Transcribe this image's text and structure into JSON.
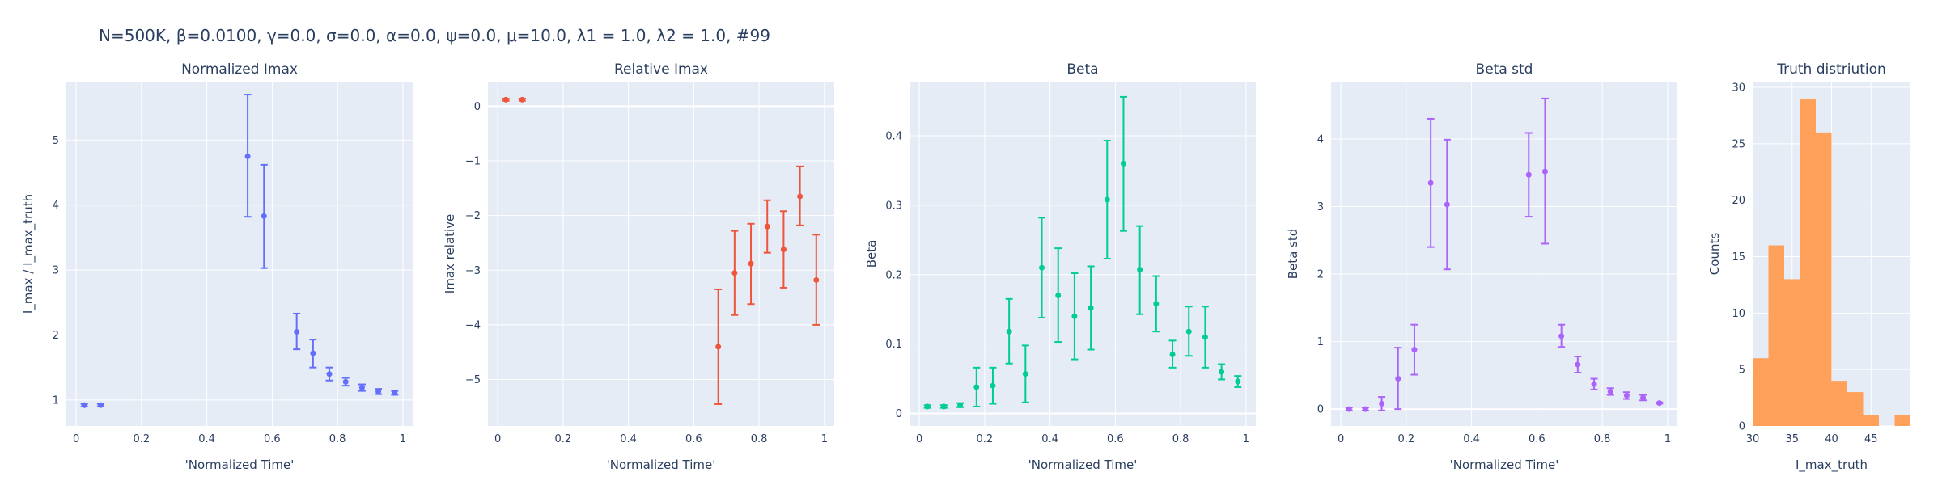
{
  "figure": {
    "suptitle": "N=500K, β=0.0100, γ=0.0, σ=0.0,  α=0.0, ψ=0.0, μ=10.0, λ1 = 1.0, λ2 = 1.0, #99"
  },
  "chart_data": [
    {
      "type": "scatter",
      "title": "Normalized Imax",
      "xlabel": "'Normalized Time'",
      "ylabel": "I_max / I_max_truth",
      "color": "#636efa",
      "xlim": [
        -0.03,
        1.03
      ],
      "ylim": [
        0.6,
        5.9
      ],
      "xticks": [
        0,
        0.2,
        0.4,
        0.6,
        0.8,
        1
      ],
      "xtick_labels": [
        "0",
        "0.2",
        "0.4",
        "0.6",
        "0.8",
        "1"
      ],
      "yticks": [
        1,
        2,
        3,
        4,
        5
      ],
      "ytick_labels": [
        "1",
        "2",
        "3",
        "4",
        "5"
      ],
      "points": [
        {
          "x": 0.025,
          "y": 0.92,
          "lo": 0.9,
          "hi": 0.94
        },
        {
          "x": 0.075,
          "y": 0.92,
          "lo": 0.9,
          "hi": 0.94
        },
        {
          "x": 0.525,
          "y": 4.75,
          "lo": 3.82,
          "hi": 5.7
        },
        {
          "x": 0.575,
          "y": 3.83,
          "lo": 3.03,
          "hi": 4.62
        },
        {
          "x": 0.675,
          "y": 2.05,
          "lo": 1.78,
          "hi": 2.33
        },
        {
          "x": 0.725,
          "y": 1.72,
          "lo": 1.5,
          "hi": 1.93
        },
        {
          "x": 0.775,
          "y": 1.4,
          "lo": 1.3,
          "hi": 1.5
        },
        {
          "x": 0.825,
          "y": 1.28,
          "lo": 1.22,
          "hi": 1.34
        },
        {
          "x": 0.875,
          "y": 1.19,
          "lo": 1.14,
          "hi": 1.24
        },
        {
          "x": 0.925,
          "y": 1.13,
          "lo": 1.09,
          "hi": 1.17
        },
        {
          "x": 0.975,
          "y": 1.11,
          "lo": 1.08,
          "hi": 1.14
        }
      ]
    },
    {
      "type": "scatter",
      "title": "Relative Imax",
      "xlabel": "'Normalized Time'",
      "ylabel": "Imax relative",
      "color": "#ef553b",
      "xlim": [
        -0.03,
        1.03
      ],
      "ylim": [
        -5.85,
        0.45
      ],
      "xticks": [
        0,
        0.2,
        0.4,
        0.6,
        0.8,
        1
      ],
      "xtick_labels": [
        "0",
        "0.2",
        "0.4",
        "0.6",
        "0.8",
        "1"
      ],
      "yticks": [
        0,
        -1,
        -2,
        -3,
        -4,
        -5
      ],
      "ytick_labels": [
        "0",
        "−1",
        "−2",
        "−3",
        "−4",
        "−5"
      ],
      "points": [
        {
          "x": 0.025,
          "y": 0.12,
          "lo": 0.1,
          "hi": 0.14
        },
        {
          "x": 0.075,
          "y": 0.12,
          "lo": 0.1,
          "hi": 0.14
        },
        {
          "x": 0.675,
          "y": -4.4,
          "lo": -5.45,
          "hi": -3.35
        },
        {
          "x": 0.725,
          "y": -3.05,
          "lo": -3.82,
          "hi": -2.28
        },
        {
          "x": 0.775,
          "y": -2.88,
          "lo": -3.62,
          "hi": -2.15
        },
        {
          "x": 0.825,
          "y": -2.2,
          "lo": -2.68,
          "hi": -1.72
        },
        {
          "x": 0.875,
          "y": -2.62,
          "lo": -3.32,
          "hi": -1.92
        },
        {
          "x": 0.925,
          "y": -1.65,
          "lo": -2.18,
          "hi": -1.1
        },
        {
          "x": 0.975,
          "y": -3.18,
          "lo": -4.0,
          "hi": -2.35
        }
      ]
    },
    {
      "type": "scatter",
      "title": "Beta",
      "xlabel": "'Normalized Time'",
      "ylabel": "Beta",
      "color": "#00cc96",
      "xlim": [
        -0.03,
        1.03
      ],
      "ylim": [
        -0.018,
        0.478
      ],
      "xticks": [
        0,
        0.2,
        0.4,
        0.6,
        0.8,
        1
      ],
      "xtick_labels": [
        "0",
        "0.2",
        "0.4",
        "0.6",
        "0.8",
        "1"
      ],
      "yticks": [
        0,
        0.1,
        0.2,
        0.3,
        0.4
      ],
      "ytick_labels": [
        "0",
        "0.1",
        "0.2",
        "0.3",
        "0.4"
      ],
      "points": [
        {
          "x": 0.025,
          "y": 0.01,
          "lo": 0.008,
          "hi": 0.012
        },
        {
          "x": 0.075,
          "y": 0.01,
          "lo": 0.008,
          "hi": 0.012
        },
        {
          "x": 0.125,
          "y": 0.012,
          "lo": 0.009,
          "hi": 0.015
        },
        {
          "x": 0.175,
          "y": 0.038,
          "lo": 0.01,
          "hi": 0.066
        },
        {
          "x": 0.225,
          "y": 0.04,
          "lo": 0.014,
          "hi": 0.066
        },
        {
          "x": 0.275,
          "y": 0.118,
          "lo": 0.072,
          "hi": 0.165
        },
        {
          "x": 0.325,
          "y": 0.057,
          "lo": 0.016,
          "hi": 0.098
        },
        {
          "x": 0.375,
          "y": 0.21,
          "lo": 0.138,
          "hi": 0.282
        },
        {
          "x": 0.425,
          "y": 0.17,
          "lo": 0.103,
          "hi": 0.238
        },
        {
          "x": 0.475,
          "y": 0.14,
          "lo": 0.078,
          "hi": 0.202
        },
        {
          "x": 0.525,
          "y": 0.152,
          "lo": 0.092,
          "hi": 0.212
        },
        {
          "x": 0.575,
          "y": 0.308,
          "lo": 0.223,
          "hi": 0.393
        },
        {
          "x": 0.625,
          "y": 0.36,
          "lo": 0.263,
          "hi": 0.456
        },
        {
          "x": 0.675,
          "y": 0.207,
          "lo": 0.143,
          "hi": 0.27
        },
        {
          "x": 0.725,
          "y": 0.158,
          "lo": 0.118,
          "hi": 0.198
        },
        {
          "x": 0.775,
          "y": 0.085,
          "lo": 0.066,
          "hi": 0.105
        },
        {
          "x": 0.825,
          "y": 0.118,
          "lo": 0.083,
          "hi": 0.154
        },
        {
          "x": 0.875,
          "y": 0.11,
          "lo": 0.066,
          "hi": 0.154
        },
        {
          "x": 0.925,
          "y": 0.06,
          "lo": 0.049,
          "hi": 0.071
        },
        {
          "x": 0.975,
          "y": 0.046,
          "lo": 0.038,
          "hi": 0.054
        }
      ]
    },
    {
      "type": "scatter",
      "title": "Beta std",
      "xlabel": "'Normalized Time'",
      "ylabel": "Beta std",
      "color": "#ab63fa",
      "xlim": [
        -0.03,
        1.03
      ],
      "ylim": [
        -0.25,
        4.85
      ],
      "xticks": [
        0,
        0.2,
        0.4,
        0.6,
        0.8,
        1
      ],
      "xtick_labels": [
        "0",
        "0.2",
        "0.4",
        "0.6",
        "0.8",
        "1"
      ],
      "yticks": [
        0,
        1,
        2,
        3,
        4
      ],
      "ytick_labels": [
        "0",
        "1",
        "2",
        "3",
        "4"
      ],
      "points": [
        {
          "x": 0.025,
          "y": 0.0,
          "lo": -0.02,
          "hi": 0.02
        },
        {
          "x": 0.075,
          "y": 0.0,
          "lo": -0.02,
          "hi": 0.02
        },
        {
          "x": 0.125,
          "y": 0.08,
          "lo": -0.02,
          "hi": 0.18
        },
        {
          "x": 0.175,
          "y": 0.45,
          "lo": 0.0,
          "hi": 0.91
        },
        {
          "x": 0.225,
          "y": 0.88,
          "lo": 0.51,
          "hi": 1.25
        },
        {
          "x": 0.275,
          "y": 3.35,
          "lo": 2.4,
          "hi": 4.3
        },
        {
          "x": 0.325,
          "y": 3.03,
          "lo": 2.07,
          "hi": 3.99
        },
        {
          "x": 0.575,
          "y": 3.47,
          "lo": 2.85,
          "hi": 4.09
        },
        {
          "x": 0.625,
          "y": 3.52,
          "lo": 2.45,
          "hi": 4.6
        },
        {
          "x": 0.675,
          "y": 1.08,
          "lo": 0.92,
          "hi": 1.25
        },
        {
          "x": 0.725,
          "y": 0.66,
          "lo": 0.54,
          "hi": 0.78
        },
        {
          "x": 0.775,
          "y": 0.37,
          "lo": 0.29,
          "hi": 0.45
        },
        {
          "x": 0.825,
          "y": 0.26,
          "lo": 0.21,
          "hi": 0.31
        },
        {
          "x": 0.875,
          "y": 0.2,
          "lo": 0.15,
          "hi": 0.25
        },
        {
          "x": 0.925,
          "y": 0.17,
          "lo": 0.13,
          "hi": 0.21
        },
        {
          "x": 0.975,
          "y": 0.09,
          "lo": 0.08,
          "hi": 0.1
        }
      ]
    },
    {
      "type": "bar",
      "title": "Truth distriution",
      "xlabel": "I_max_truth",
      "ylabel": "Counts",
      "color": "#ffa15a",
      "xlim": [
        30,
        50
      ],
      "ylim": [
        0,
        30.5
      ],
      "xticks": [
        30,
        35,
        40,
        45
      ],
      "xtick_labels": [
        "30",
        "35",
        "40",
        "45"
      ],
      "yticks": [
        0,
        5,
        10,
        15,
        20,
        25,
        30
      ],
      "ytick_labels": [
        "0",
        "5",
        "10",
        "15",
        "20",
        "25",
        "30"
      ],
      "bins": [
        {
          "x0": 30,
          "x1": 32,
          "count": 6
        },
        {
          "x0": 32,
          "x1": 34,
          "count": 16
        },
        {
          "x0": 34,
          "x1": 36,
          "count": 13
        },
        {
          "x0": 36,
          "x1": 38,
          "count": 29
        },
        {
          "x0": 38,
          "x1": 40,
          "count": 26
        },
        {
          "x0": 40,
          "x1": 42,
          "count": 4
        },
        {
          "x0": 42,
          "x1": 44,
          "count": 3
        },
        {
          "x0": 44,
          "x1": 46,
          "count": 1
        },
        {
          "x0": 46,
          "x1": 48,
          "count": 0
        },
        {
          "x0": 48,
          "x1": 50,
          "count": 1
        }
      ]
    }
  ]
}
